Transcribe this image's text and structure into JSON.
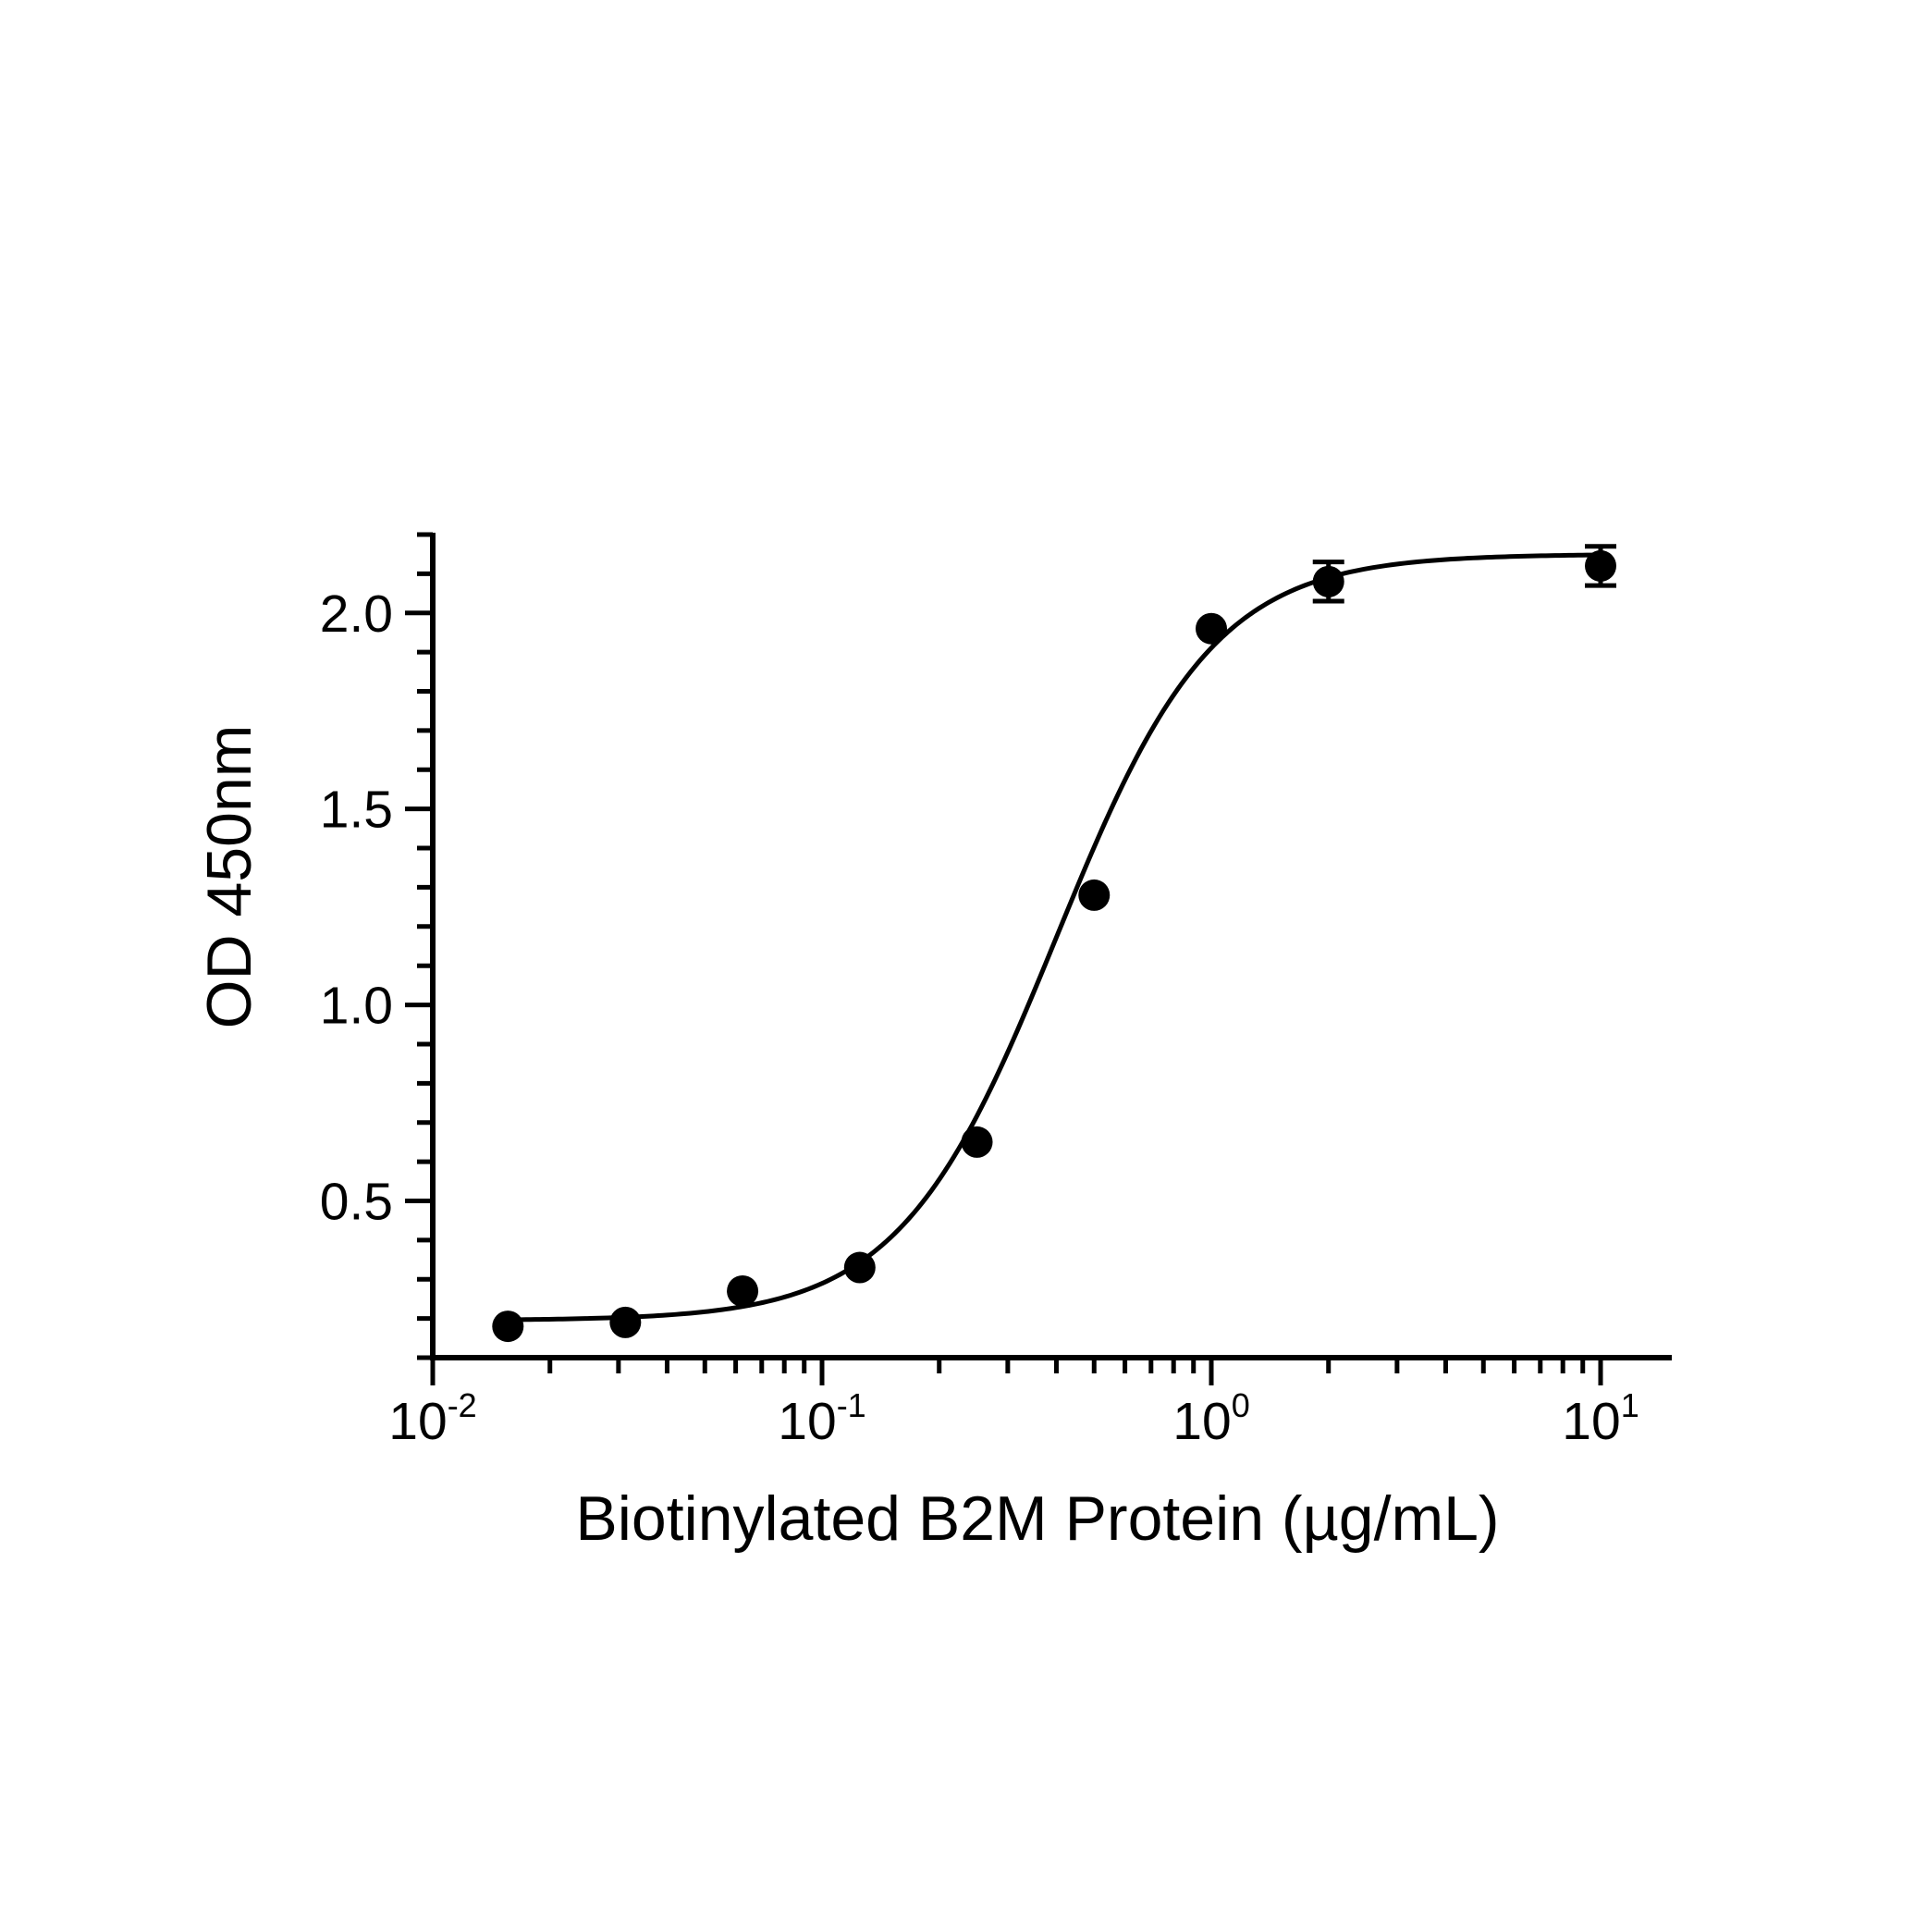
{
  "chart_data": {
    "type": "scatter",
    "title": "",
    "xlabel": "Biotinylated B2M Protein (µg/mL)",
    "ylabel": "OD 450nm",
    "x_scale": "log",
    "xlim": [
      0.01,
      15
    ],
    "ylim": [
      0.1,
      2.2
    ],
    "x_ticks": [
      {
        "value": 0.01,
        "base": "10",
        "exponent": "-2"
      },
      {
        "value": 0.1,
        "base": "10",
        "exponent": "-1"
      },
      {
        "value": 1,
        "base": "10",
        "exponent": "0"
      },
      {
        "value": 10,
        "base": "10",
        "exponent": "1"
      }
    ],
    "y_ticks": [
      {
        "value": 0.5,
        "label": "0.5"
      },
      {
        "value": 1.0,
        "label": "1.0"
      },
      {
        "value": 1.5,
        "label": "1.5"
      },
      {
        "value": 2.0,
        "label": "2.0"
      }
    ],
    "grid": false,
    "legend": false,
    "color": "#000000",
    "series": [
      {
        "points": [
          {
            "x": 0.0156,
            "y": 0.18,
            "err": 0
          },
          {
            "x": 0.03125,
            "y": 0.19,
            "err": 0
          },
          {
            "x": 0.0625,
            "y": 0.27,
            "err": 0
          },
          {
            "x": 0.125,
            "y": 0.33,
            "err": 0
          },
          {
            "x": 0.25,
            "y": 0.65,
            "err": 0
          },
          {
            "x": 0.5,
            "y": 1.28,
            "err": 0
          },
          {
            "x": 1.0,
            "y": 1.96,
            "err": 0
          },
          {
            "x": 2.0,
            "y": 2.08,
            "err": 0.05
          },
          {
            "x": 10.0,
            "y": 2.12,
            "err": 0.05
          }
        ],
        "fit": {
          "model": "4PL",
          "bottom": 0.195,
          "top": 2.15,
          "ec50": 0.4,
          "hill": 2.15
        }
      }
    ]
  }
}
